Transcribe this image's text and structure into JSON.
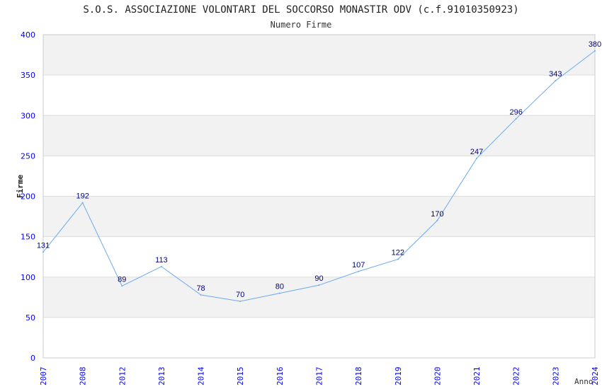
{
  "chart_data": {
    "type": "line",
    "title": "S.O.S. ASSOCIAZIONE VOLONTARI DEL SOCCORSO MONASTIR ODV (c.f.91010350923)",
    "subtitle": "Numero Firme",
    "xlabel": "Anno",
    "ylabel": "Firme",
    "ylim": [
      0,
      400
    ],
    "yticks": [
      0,
      50,
      100,
      150,
      200,
      250,
      300,
      350,
      400
    ],
    "categories": [
      "2007",
      "2008",
      "2012",
      "2013",
      "2014",
      "2015",
      "2016",
      "2017",
      "2018",
      "2019",
      "2020",
      "2021",
      "2022",
      "2023",
      "2024"
    ],
    "values": [
      131,
      192,
      89,
      113,
      78,
      70,
      80,
      90,
      107,
      122,
      170,
      247,
      296,
      343,
      380
    ],
    "grid": true,
    "line_color": "#6aaaf0",
    "label_color": "#000080",
    "tick_color": "#0000ff"
  }
}
